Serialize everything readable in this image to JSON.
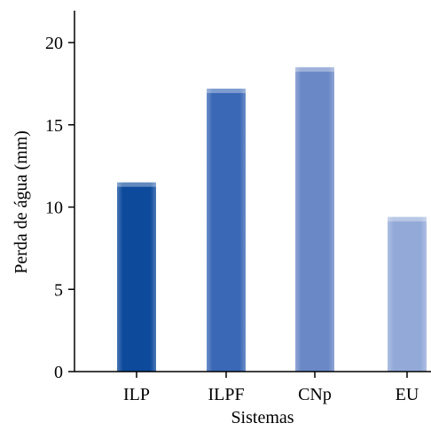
{
  "chart_data": {
    "type": "bar",
    "categories": [
      "ILP",
      "ILPF",
      "CNp",
      "EU"
    ],
    "values": [
      11.5,
      17.2,
      18.5,
      9.4
    ],
    "title": "",
    "xlabel": "Sistemas",
    "ylabel": "Perda de água (mm)",
    "ylim": [
      0,
      20
    ],
    "yticks": [
      0,
      5,
      10,
      15,
      20
    ],
    "grid": false,
    "legend": "none",
    "colors": [
      "#0d4a9c",
      "#3a68b6",
      "#6a88c6",
      "#93aad8"
    ]
  }
}
